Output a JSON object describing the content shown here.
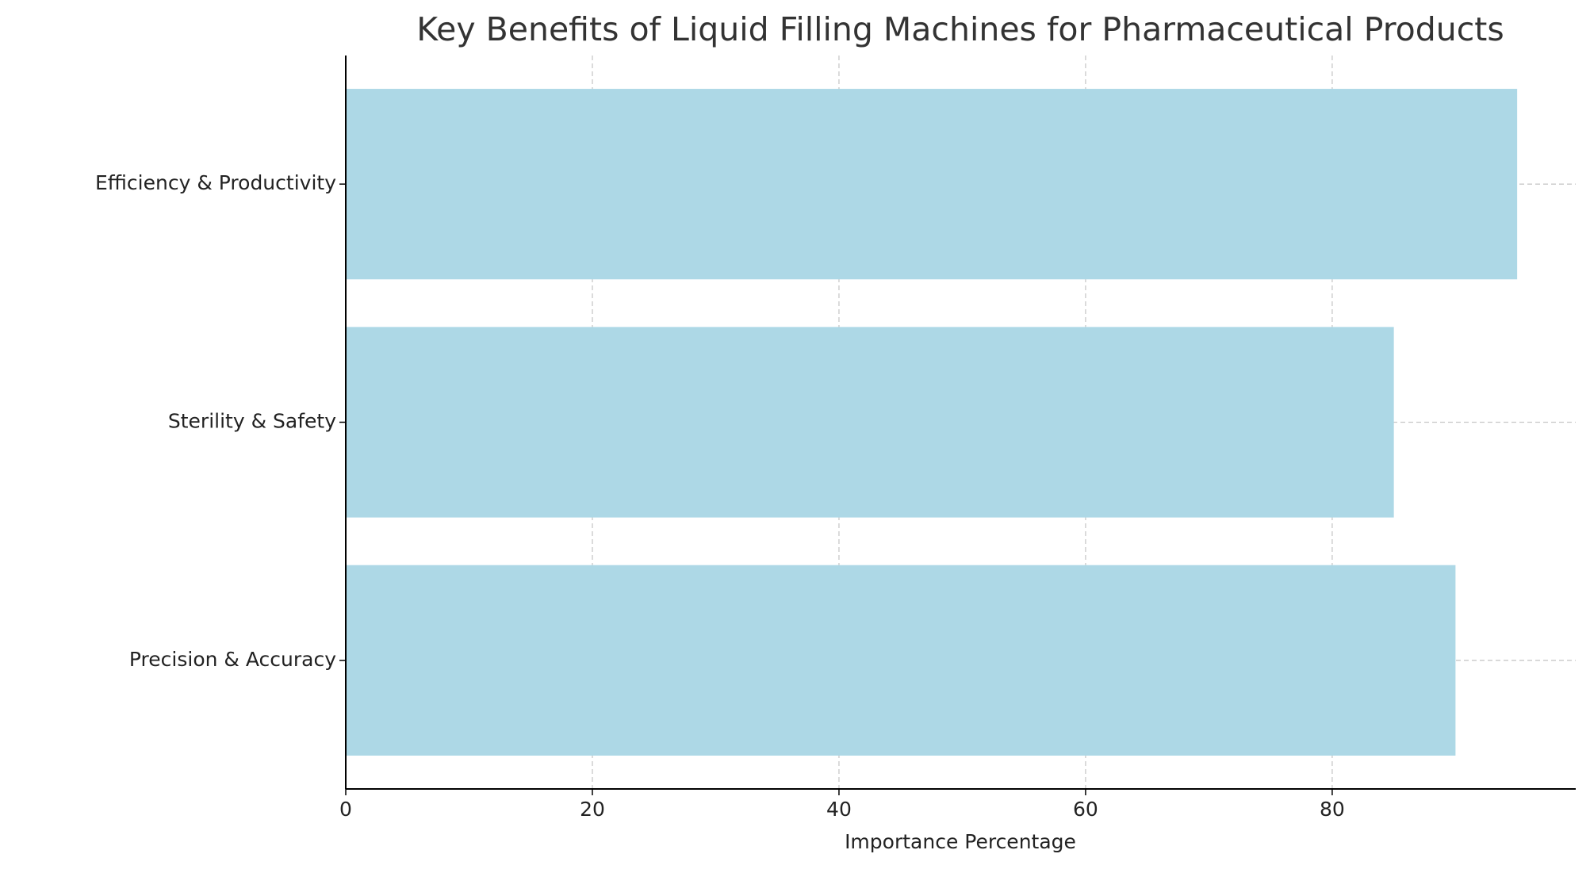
{
  "chart_data": {
    "type": "barh",
    "title": "Key Benefits of Liquid Filling Machines for Pharmaceutical Products",
    "xlabel": "Importance Percentage",
    "categories": [
      "Precision & Accuracy",
      "Sterility & Safety",
      "Efficiency & Productivity"
    ],
    "values": [
      90,
      85,
      95
    ],
    "color": "#add8e6",
    "xlim": [
      0,
      99.75
    ],
    "xticks": [
      0,
      20,
      40,
      60,
      80
    ],
    "grid": true
  }
}
